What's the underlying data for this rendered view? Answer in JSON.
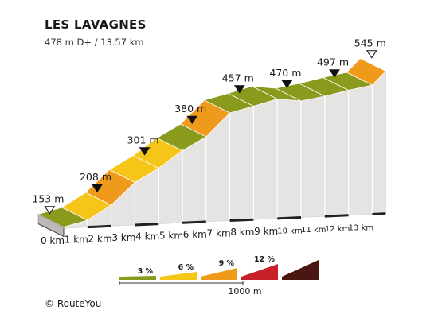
{
  "chart_data": {
    "type": "area",
    "title": "LES LAVAGNES",
    "subtitle": "478 m D+ / 13.57 km",
    "x_unit": "km",
    "y_unit": "m",
    "x_ticks": [
      "0 km",
      "1 km",
      "2 km",
      "3 km",
      "4 km",
      "5 km",
      "6 km",
      "7 km",
      "8 km",
      "9 km",
      "10 km",
      "11 km",
      "12 km",
      "13 km"
    ],
    "profile": [
      {
        "km": 0,
        "elevation": 153
      },
      {
        "km": 1,
        "elevation": 170
      },
      {
        "km": 2,
        "elevation": 208
      },
      {
        "km": 3,
        "elevation": 265
      },
      {
        "km": 4,
        "elevation": 301
      },
      {
        "km": 5,
        "elevation": 345
      },
      {
        "km": 6,
        "elevation": 380
      },
      {
        "km": 7,
        "elevation": 440
      },
      {
        "km": 8,
        "elevation": 457
      },
      {
        "km": 9,
        "elevation": 475
      },
      {
        "km": 10,
        "elevation": 470
      },
      {
        "km": 11,
        "elevation": 482
      },
      {
        "km": 12,
        "elevation": 497
      },
      {
        "km": 13,
        "elevation": 510
      },
      {
        "km": 13.57,
        "elevation": 545
      }
    ],
    "segments": [
      {
        "from_km": 0,
        "to_km": 1,
        "grade_class": "3 %"
      },
      {
        "from_km": 1,
        "to_km": 2,
        "grade_class": "6 %"
      },
      {
        "from_km": 2,
        "to_km": 3,
        "grade_class": "9 %"
      },
      {
        "from_km": 3,
        "to_km": 4,
        "grade_class": "6 %"
      },
      {
        "from_km": 4,
        "to_km": 5,
        "grade_class": "6 %"
      },
      {
        "from_km": 5,
        "to_km": 6,
        "grade_class": "3 %"
      },
      {
        "from_km": 6,
        "to_km": 7,
        "grade_class": "9 %"
      },
      {
        "from_km": 7,
        "to_km": 8,
        "grade_class": "3 %"
      },
      {
        "from_km": 8,
        "to_km": 9,
        "grade_class": "3 %"
      },
      {
        "from_km": 9,
        "to_km": 10,
        "grade_class": "3 %"
      },
      {
        "from_km": 10,
        "to_km": 11,
        "grade_class": "3 %"
      },
      {
        "from_km": 11,
        "to_km": 12,
        "grade_class": "3 %"
      },
      {
        "from_km": 12,
        "to_km": 13,
        "grade_class": "3 %"
      },
      {
        "from_km": 13,
        "to_km": 13.57,
        "grade_class": "9 %"
      }
    ],
    "markers": [
      {
        "km": 0,
        "label": "153 m",
        "style": "open"
      },
      {
        "km": 2,
        "label": "208 m",
        "style": "filled"
      },
      {
        "km": 4,
        "label": "301 m",
        "style": "filled"
      },
      {
        "km": 6,
        "label": "380 m",
        "style": "filled"
      },
      {
        "km": 8,
        "label": "457 m",
        "style": "filled"
      },
      {
        "km": 10,
        "label": "470 m",
        "style": "filled"
      },
      {
        "km": 12,
        "label": "497 m",
        "style": "filled"
      },
      {
        "km": 13.57,
        "label": "545 m",
        "style": "open"
      }
    ],
    "legend": {
      "items": [
        {
          "label": "3 %",
          "color": "#8a9a1c"
        },
        {
          "label": "6 %",
          "color": "#f5c518"
        },
        {
          "label": "9 %",
          "color": "#ef9a1b"
        },
        {
          "label": "12 %",
          "color": "#c8202a"
        },
        {
          "label": "",
          "color": "#4a1612"
        }
      ],
      "scale_label": "1000 m"
    },
    "colors": {
      "top_light": "#9aaa22",
      "side": "#e6e3e3",
      "divider": "#ffffff",
      "base_mark": "#222222"
    }
  },
  "credit": "© RouteYou"
}
